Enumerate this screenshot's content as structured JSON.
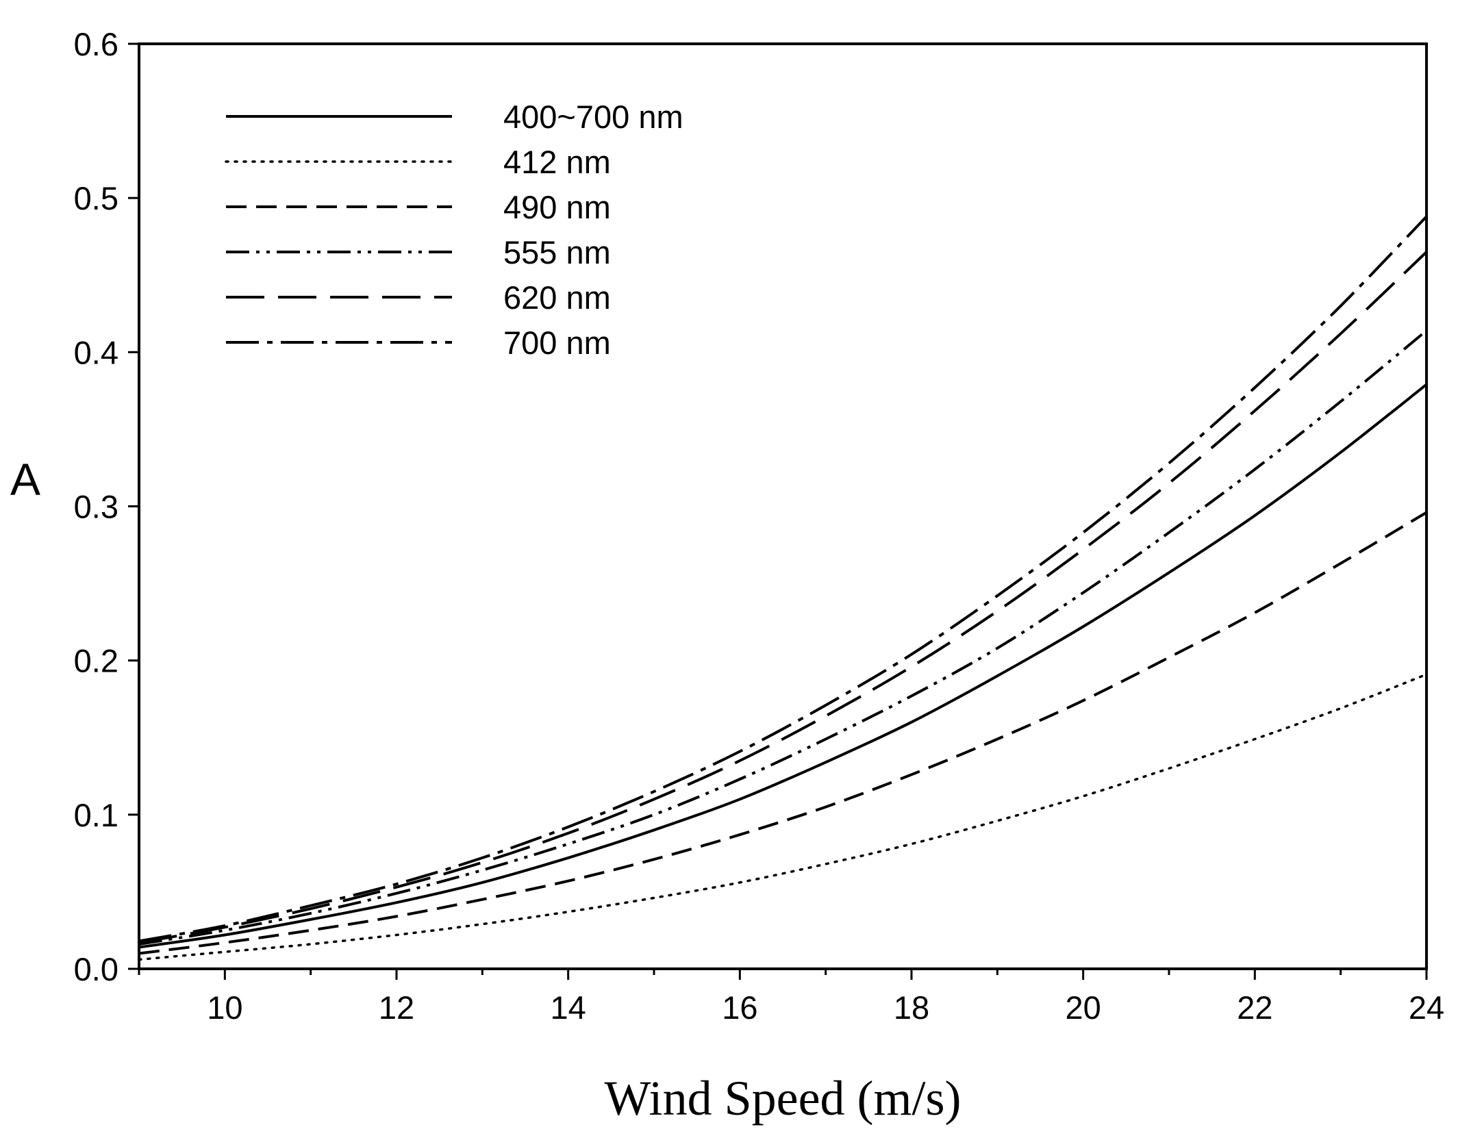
{
  "chart_data": {
    "type": "line",
    "title": "",
    "xlabel": "Wind Speed (m/s)",
    "ylabel": "A",
    "xlim": [
      9,
      24
    ],
    "ylim": [
      0,
      0.6
    ],
    "xticks": [
      10,
      12,
      14,
      16,
      18,
      20,
      22,
      24
    ],
    "xtick_labels": [
      "10",
      "12",
      "14",
      "16",
      "18",
      "20",
      "22",
      "24"
    ],
    "yticks": [
      0,
      0.1,
      0.2,
      0.3,
      0.4,
      0.5,
      0.6
    ],
    "ytick_labels": [
      "0.0",
      "0.1",
      "0.2",
      "0.3",
      "0.4",
      "0.5",
      "0.6"
    ],
    "grid": false,
    "legend_position": "top-left",
    "x": [
      9,
      10,
      11,
      12,
      13,
      14,
      15,
      16,
      17,
      18,
      19,
      20,
      21,
      22,
      23,
      24
    ],
    "series": [
      {
        "name": "400~700 nm",
        "style": "solid",
        "values": [
          0.014,
          0.022,
          0.032,
          0.043,
          0.056,
          0.072,
          0.09,
          0.11,
          0.134,
          0.16,
          0.19,
          0.222,
          0.257,
          0.294,
          0.335,
          0.379
        ]
      },
      {
        "name": "412 nm",
        "style": "dotted",
        "values": [
          0.006,
          0.011,
          0.016,
          0.022,
          0.029,
          0.037,
          0.046,
          0.056,
          0.068,
          0.081,
          0.096,
          0.112,
          0.13,
          0.149,
          0.169,
          0.191
        ]
      },
      {
        "name": "490 nm",
        "style": "dashed",
        "values": [
          0.01,
          0.017,
          0.025,
          0.034,
          0.045,
          0.057,
          0.071,
          0.087,
          0.105,
          0.126,
          0.149,
          0.174,
          0.202,
          0.231,
          0.263,
          0.296
        ]
      },
      {
        "name": "555 nm",
        "style": "dash-dot-dot",
        "values": [
          0.016,
          0.025,
          0.036,
          0.049,
          0.064,
          0.081,
          0.1,
          0.123,
          0.149,
          0.177,
          0.208,
          0.244,
          0.283,
          0.324,
          0.368,
          0.414
        ]
      },
      {
        "name": "620 nm",
        "style": "long-dash",
        "values": [
          0.017,
          0.027,
          0.039,
          0.053,
          0.069,
          0.088,
          0.11,
          0.135,
          0.164,
          0.196,
          0.232,
          0.272,
          0.315,
          0.362,
          0.412,
          0.465
        ]
      },
      {
        "name": "700 nm",
        "style": "dash-dot",
        "values": [
          0.018,
          0.028,
          0.041,
          0.055,
          0.072,
          0.092,
          0.115,
          0.141,
          0.171,
          0.204,
          0.242,
          0.283,
          0.328,
          0.377,
          0.43,
          0.488
        ]
      }
    ]
  }
}
